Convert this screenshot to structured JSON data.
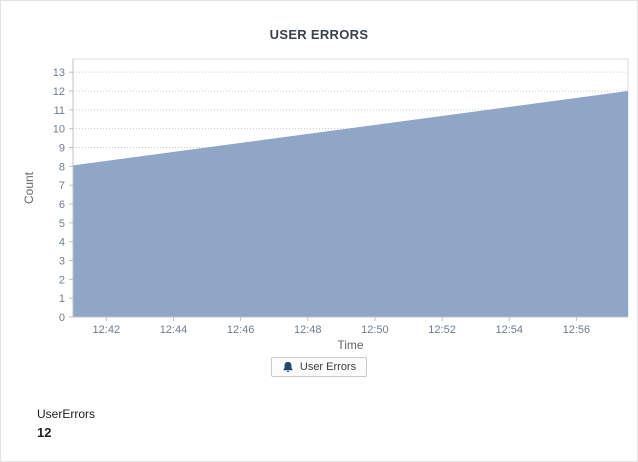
{
  "panel": {
    "background": "#ffffff",
    "border_color": "#e2e2e2"
  },
  "chart_data": {
    "type": "area",
    "title": "USER ERRORS",
    "xlabel": "Time",
    "ylabel": "Count",
    "ylim": [
      0,
      13.7
    ],
    "y_ticks": [
      0,
      1,
      2,
      3,
      4,
      5,
      6,
      7,
      8,
      9,
      10,
      11,
      12,
      13
    ],
    "x_tick_labels": [
      "12:42",
      "12:44",
      "12:46",
      "12:48",
      "12:50",
      "12:52",
      "12:54",
      "12:56"
    ],
    "x_tick_start_frac": 0.06,
    "x_tick_step_frac": 0.121,
    "grid": "dotted-horizontal",
    "legend_position": "bottom-center",
    "series": [
      {
        "name": "User Errors",
        "fill_color": "#8fa6c6",
        "edge_points_frac": [
          [
            0,
            8.05
          ],
          [
            1,
            12.0
          ]
        ],
        "tick_values": [
          8.3,
          8.8,
          9.2,
          9.7,
          10.2,
          10.7,
          11.2,
          11.6
        ],
        "end_value": 12
      }
    ],
    "colors": {
      "grid": "#c9c9c9",
      "axis": "#c0c0c0",
      "frame": "#dcdcdc",
      "tick_text": "#6e7d8d",
      "axis_title": "#666666"
    }
  },
  "legend": {
    "label": "User Errors",
    "icon_color": "#24476b"
  },
  "summary": {
    "label": "UserErrors",
    "value": "12"
  }
}
